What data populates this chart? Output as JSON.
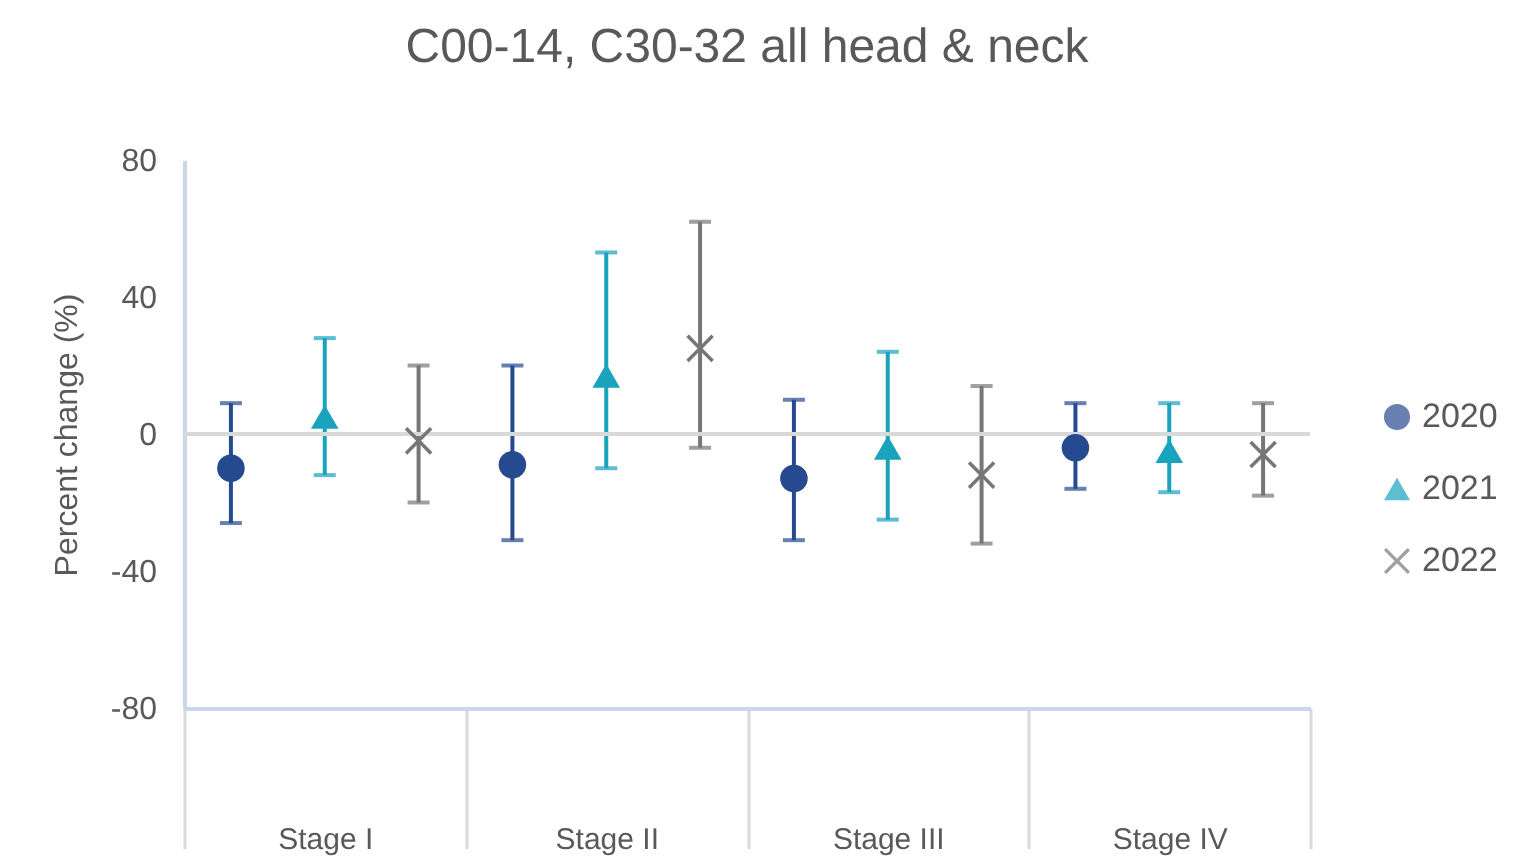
{
  "chart_data": {
    "type": "scatter",
    "title": "C00-14, C30-32 all head & neck",
    "ylabel": "Percent change (%)",
    "categories": [
      "Stage I",
      "Stage II",
      "Stage III",
      "Stage IV"
    ],
    "series": [
      {
        "name": "2020",
        "color": "#264a8f",
        "marker": "circle",
        "values": [
          -10,
          -9,
          -13,
          -4
        ],
        "errors": [
          [
            -26,
            9
          ],
          [
            -31,
            20
          ],
          [
            -31,
            10
          ],
          [
            -16,
            9
          ]
        ]
      },
      {
        "name": "2021",
        "color": "#1aa3bd",
        "marker": "triangle",
        "values": [
          5,
          17,
          -4,
          -5
        ],
        "errors": [
          [
            -12,
            28
          ],
          [
            -10,
            53
          ],
          [
            -25,
            24
          ],
          [
            -17,
            9
          ]
        ]
      },
      {
        "name": "2022",
        "color": "#767676",
        "marker": "cross",
        "values": [
          -2,
          25,
          -12,
          -6
        ],
        "errors": [
          [
            -20,
            20
          ],
          [
            -4,
            62
          ],
          [
            -32,
            14
          ],
          [
            -18,
            9
          ]
        ]
      }
    ],
    "ylim": [
      -80,
      80
    ],
    "yticks": [
      -80,
      -40,
      0,
      40,
      80
    ],
    "ref_lines": [
      {
        "axis": "y",
        "value": 0,
        "color": "#d9d9d9"
      }
    ],
    "legend": "right"
  }
}
